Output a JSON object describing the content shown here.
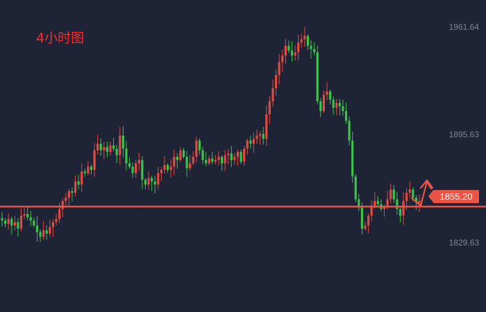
{
  "chart_data": {
    "type": "candlestick",
    "title": "4小时图",
    "y_ticks": [
      {
        "value": 1961.64,
        "label": "1961.64"
      },
      {
        "value": 1895.63,
        "label": "1895.63"
      },
      {
        "value": 1829.63,
        "label": "1829.63"
      }
    ],
    "ylim": [
      1787,
      1978
    ],
    "current_price": {
      "value": 1855.2,
      "label": "1855.20"
    },
    "support_level": 1851.5,
    "colors": {
      "up": "#e04b42",
      "down": "#3ec24c",
      "line": "#e85445",
      "background": "#1e2436",
      "axis_text": "#7d8596",
      "title": "#ff2a2a"
    },
    "close_path": [
      1843,
      1841,
      1844,
      1840,
      1842,
      1838,
      1846,
      1847,
      1845,
      1843,
      1840,
      1836,
      1833,
      1837,
      1835,
      1839,
      1842,
      1844,
      1850,
      1855,
      1857,
      1861,
      1860,
      1867,
      1865,
      1873,
      1872,
      1876,
      1874,
      1886,
      1890,
      1886,
      1888,
      1885,
      1889,
      1887,
      1883,
      1895,
      1887,
      1878,
      1876,
      1872,
      1878,
      1880,
      1868,
      1865,
      1869,
      1867,
      1865,
      1872,
      1874,
      1877,
      1874,
      1876,
      1882,
      1880,
      1886,
      1882,
      1875,
      1878,
      1882,
      1892,
      1886,
      1880,
      1878,
      1881,
      1879,
      1880,
      1882,
      1878,
      1883,
      1884,
      1880,
      1882,
      1885,
      1879,
      1887,
      1892,
      1890,
      1893,
      1895,
      1896,
      1893,
      1908,
      1916,
      1924,
      1932,
      1940,
      1944,
      1950,
      1947,
      1944,
      1946,
      1952,
      1954,
      1956,
      1950,
      1948,
      1946,
      1916,
      1910,
      1920,
      1922,
      1917,
      1912,
      1915,
      1913,
      1910,
      1904,
      1892,
      1870,
      1856,
      1851,
      1838,
      1840,
      1846,
      1852,
      1855,
      1853,
      1850,
      1851,
      1856,
      1862,
      1856,
      1850,
      1846,
      1855,
      1860,
      1862,
      1857,
      1854,
      1855
    ]
  }
}
